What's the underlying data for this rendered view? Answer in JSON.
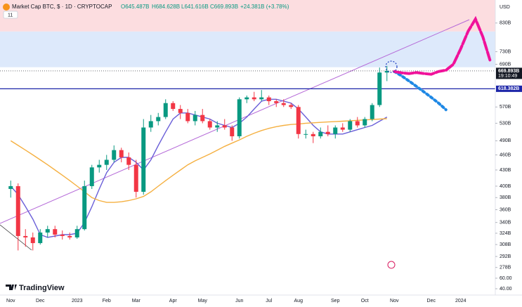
{
  "header": {
    "symbol": "Market Cap BTC, $ · 1D · CRYPTOCAP",
    "indicators_count": "11",
    "ohlc": {
      "open": "O645.487B",
      "high": "H684.628B",
      "low": "L641.616B",
      "close": "C669.893B",
      "change": "+24.381B (+3.78%)"
    }
  },
  "brand": "TradingView",
  "chart_data": {
    "type": "candlestick",
    "currency": "USD",
    "log_scale": true,
    "grid": false,
    "up_color": "#089981",
    "down_color": "#f23645",
    "categories": [
      "Nov",
      null,
      null,
      null,
      "Dec",
      null,
      null,
      null,
      null,
      "2023",
      null,
      null,
      null,
      "Feb",
      null,
      null,
      null,
      "Mar",
      null,
      null,
      null,
      null,
      "Apr",
      null,
      null,
      null,
      "May",
      null,
      null,
      null,
      null,
      "Jun",
      null,
      null,
      null,
      "Jul",
      null,
      null,
      null,
      "Aug",
      null,
      null,
      null,
      null,
      "Sep",
      null,
      null,
      null,
      "Oct",
      null,
      null,
      null,
      "Nov",
      null,
      null,
      null,
      null,
      "Dec",
      null,
      null,
      null,
      "2024",
      null,
      null,
      null,
      null
    ],
    "open": [
      395,
      400,
      320,
      318,
      310,
      325,
      330,
      322,
      320,
      318,
      330,
      400,
      435,
      440,
      450,
      470,
      455,
      440,
      390,
      520,
      535,
      545,
      580,
      565,
      555,
      535,
      550,
      535,
      520,
      525,
      520,
      500,
      590,
      595,
      590,
      595,
      585,
      580,
      575,
      570,
      505,
      505,
      500,
      510,
      505,
      520,
      515,
      535,
      525,
      540,
      575,
      665,
      null,
      null,
      null,
      null,
      null,
      null,
      null,
      null,
      null,
      null,
      null,
      null,
      null,
      null
    ],
    "high": [
      410,
      405,
      330,
      325,
      330,
      335,
      335,
      328,
      325,
      335,
      410,
      440,
      450,
      460,
      480,
      475,
      465,
      450,
      540,
      550,
      555,
      590,
      585,
      575,
      565,
      560,
      565,
      540,
      535,
      540,
      525,
      595,
      600,
      610,
      615,
      600,
      590,
      590,
      580,
      575,
      515,
      510,
      520,
      525,
      525,
      530,
      540,
      545,
      545,
      580,
      680,
      685,
      null,
      null,
      null,
      null,
      null,
      null,
      null,
      null,
      null,
      null,
      null,
      null,
      null,
      null
    ],
    "low": [
      380,
      300,
      305,
      300,
      308,
      318,
      318,
      315,
      315,
      316,
      328,
      395,
      425,
      430,
      445,
      445,
      430,
      380,
      385,
      510,
      525,
      540,
      560,
      540,
      530,
      525,
      530,
      515,
      510,
      515,
      490,
      495,
      580,
      585,
      585,
      575,
      570,
      570,
      565,
      495,
      495,
      485,
      495,
      500,
      495,
      510,
      510,
      520,
      520,
      535,
      570,
      640,
      null,
      null,
      null,
      null,
      null,
      null,
      null,
      null,
      null,
      null,
      null,
      null,
      null,
      null
    ],
    "close": [
      400,
      320,
      318,
      310,
      325,
      330,
      322,
      320,
      318,
      330,
      400,
      435,
      440,
      450,
      470,
      455,
      440,
      390,
      520,
      535,
      545,
      580,
      565,
      555,
      535,
      550,
      535,
      520,
      525,
      520,
      500,
      590,
      595,
      590,
      595,
      585,
      580,
      575,
      570,
      505,
      505,
      500,
      510,
      505,
      520,
      515,
      535,
      525,
      540,
      575,
      665,
      670,
      null,
      null,
      null,
      null,
      null,
      null,
      null,
      null,
      null,
      null,
      null,
      null,
      null,
      null
    ],
    "ylim": [
      270,
      920
    ],
    "yticks": [
      {
        "value": 830,
        "label": "830B"
      },
      {
        "value": 730,
        "label": "730B"
      },
      {
        "value": 690,
        "label": "690B"
      },
      {
        "value": 570,
        "label": "570B"
      },
      {
        "value": 530,
        "label": "530B"
      },
      {
        "value": 490,
        "label": "490B"
      },
      {
        "value": 460,
        "label": "460B"
      },
      {
        "value": 430,
        "label": "430B"
      },
      {
        "value": 400,
        "label": "400B"
      },
      {
        "value": 380,
        "label": "380B"
      },
      {
        "value": 360,
        "label": "360B"
      },
      {
        "value": 340,
        "label": "340B"
      },
      {
        "value": 324,
        "label": "324B"
      },
      {
        "value": 308,
        "label": "308B"
      },
      {
        "value": 292,
        "label": "292B"
      },
      {
        "value": 278,
        "label": "278B"
      }
    ],
    "y2lim": [
      20,
      100
    ],
    "y2ticks": [
      {
        "value": 60,
        "label": "60.00"
      },
      {
        "value": 40,
        "label": "40.00"
      }
    ],
    "zones": [
      {
        "from": 799,
        "to": 920,
        "color": "#fcdde0"
      },
      {
        "from": 681,
        "to": 799,
        "color": "#dde9fb"
      }
    ],
    "price_lines": [
      {
        "value": 669.893,
        "label": "669.893B",
        "time": "19:10:49",
        "color": "#131722"
      },
      {
        "value": 618.382,
        "label": "618.382B",
        "color": "#1c25a8"
      }
    ],
    "overlays": [
      {
        "color": "#6a5fd8",
        "values": [
          400,
          385,
          365,
          345,
          322,
          318,
          320,
          322,
          322,
          324,
          340,
          365,
          395,
          425,
          445,
          455,
          455,
          445,
          430,
          450,
          480,
          510,
          540,
          555,
          555,
          550,
          545,
          540,
          530,
          525,
          520,
          530,
          545,
          565,
          585,
          590,
          590,
          585,
          580,
          565,
          545,
          525,
          510,
          505,
          505,
          505,
          510,
          515,
          520,
          525,
          535,
          545,
          null,
          null,
          null,
          null,
          null,
          null,
          null,
          null,
          null,
          null,
          null,
          null,
          null,
          null
        ]
      },
      {
        "color": "#f5b041",
        "values": [
          490,
          480,
          470,
          460,
          450,
          440,
          430,
          420,
          410,
          400,
          390,
          380,
          375,
          372,
          372,
          373,
          375,
          378,
          382,
          390,
          400,
          410,
          420,
          430,
          440,
          448,
          455,
          462,
          470,
          478,
          485,
          492,
          500,
          507,
          513,
          518,
          522,
          525,
          527,
          528,
          530,
          531,
          532,
          533,
          534,
          535,
          536,
          537,
          538,
          539,
          540,
          541,
          null,
          null,
          null,
          null,
          null,
          null,
          null,
          null,
          null,
          null,
          null,
          null,
          null,
          null
        ]
      }
    ],
    "projections": [
      {
        "color": "#1e88e5",
        "values": [
          null,
          null,
          null,
          null,
          null,
          null,
          null,
          null,
          null,
          null,
          null,
          null,
          null,
          null,
          null,
          null,
          null,
          null,
          null,
          null,
          null,
          null,
          null,
          null,
          null,
          null,
          null,
          null,
          null,
          null,
          null,
          null,
          null,
          null,
          null,
          null,
          null,
          null,
          null,
          null,
          null,
          null,
          null,
          null,
          null,
          null,
          null,
          null,
          null,
          null,
          null,
          null,
          668,
          655,
          640,
          625,
          610,
          595,
          580,
          563,
          null,
          null,
          null,
          null,
          null,
          null
        ]
      },
      {
        "color": "#f0129a",
        "values": [
          null,
          null,
          null,
          null,
          null,
          null,
          null,
          null,
          null,
          null,
          null,
          null,
          null,
          null,
          null,
          null,
          null,
          null,
          null,
          null,
          null,
          null,
          null,
          null,
          null,
          null,
          null,
          null,
          null,
          null,
          null,
          null,
          null,
          null,
          null,
          null,
          null,
          null,
          null,
          null,
          null,
          null,
          null,
          null,
          null,
          null,
          null,
          null,
          null,
          null,
          null,
          null,
          668,
          664,
          662,
          665,
          662,
          660,
          668,
          672,
          690,
          740,
          800,
          845,
          780,
          700
        ]
      }
    ]
  }
}
